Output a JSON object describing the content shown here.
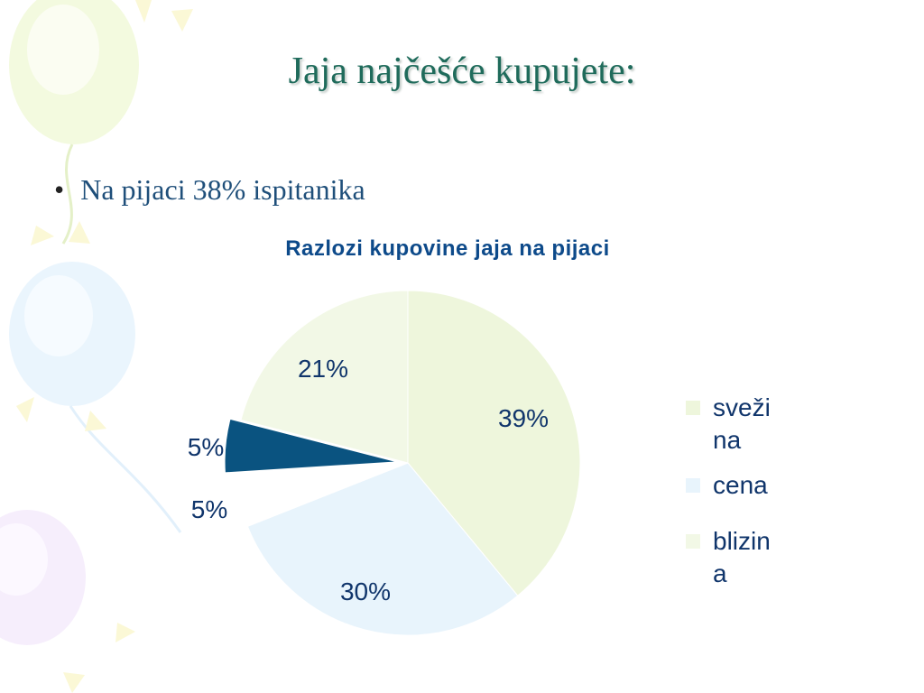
{
  "slide": {
    "title": "Jaja najčešće kupujete:",
    "bullet_mark": "•",
    "bullet": "Na pijaci 38% ispitanika"
  },
  "chart_data": {
    "type": "pie",
    "title": "Razlozi kupovine jaja na pijaci",
    "slices": [
      {
        "legend": "sveži na",
        "value": 39,
        "label": "39%",
        "color": "#eef6dc",
        "legend_text": "sveži\nna"
      },
      {
        "legend": "cena",
        "value": 30,
        "label": "30%",
        "color": "#e8f4fc",
        "legend_text": "cena"
      },
      {
        "legend": "",
        "value": 5,
        "label": "5%",
        "color": "#ffffff",
        "legend_text": ""
      },
      {
        "legend": "",
        "value": 5,
        "label": "5%",
        "color": "#0a5380",
        "legend_text": ""
      },
      {
        "legend": "blizina",
        "value": 21,
        "label": "21%",
        "color": "#f2f8e6",
        "legend_text": "blizin\na"
      }
    ],
    "legend_entries": [
      {
        "text": "sveži na",
        "color": "#eef6dc"
      },
      {
        "text": "cena",
        "color": "#e8f4fc"
      },
      {
        "text": "blizina",
        "color": "#ffffff"
      }
    ],
    "legend_position": "right"
  },
  "colors": {
    "title": "#1f6b5b",
    "bullet": "#1f4f7a",
    "chart_title": "#0d4a8a",
    "label": "#10356b"
  }
}
